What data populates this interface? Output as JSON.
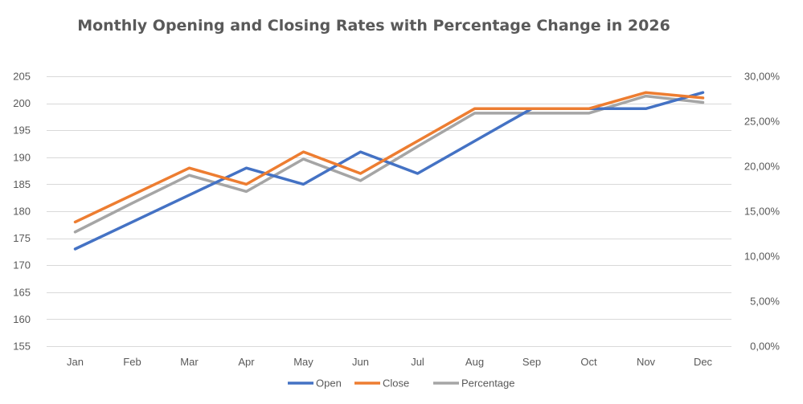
{
  "chart_data": {
    "type": "line",
    "title": "Monthly Opening and Closing Rates with Percentage Change in 2026",
    "categories": [
      "Jan",
      "Feb",
      "Mar",
      "Apr",
      "May",
      "Jun",
      "Jul",
      "Aug",
      "Sep",
      "Oct",
      "Nov",
      "Dec"
    ],
    "y_left": {
      "min": 155,
      "max": 205,
      "step": 5,
      "ticks": [
        "155",
        "160",
        "165",
        "170",
        "175",
        "180",
        "185",
        "190",
        "195",
        "200",
        "205"
      ]
    },
    "y_right": {
      "min": 0,
      "max": 30,
      "step": 5,
      "ticks": [
        "0,00%",
        "5,00%",
        "10,00%",
        "15,00%",
        "20,00%",
        "25,00%",
        "30,00%"
      ]
    },
    "grid": true,
    "legend_position": "bottom",
    "series": [
      {
        "name": "Open",
        "axis": "left",
        "color": "#4472C4",
        "values": [
          173,
          178,
          183,
          188,
          185,
          191,
          187,
          193,
          199,
          199,
          199,
          202
        ]
      },
      {
        "name": "Close",
        "axis": "left",
        "color": "#ED7D31",
        "values": [
          178,
          183,
          188,
          185,
          191,
          187,
          193,
          199,
          199,
          199,
          202,
          201
        ]
      },
      {
        "name": "Percentage",
        "axis": "right",
        "color": "#A5A5A5",
        "values": [
          12.7,
          15.9,
          19.0,
          17.2,
          20.8,
          18.4,
          22.2,
          25.9,
          25.9,
          25.9,
          27.8,
          27.1
        ]
      }
    ]
  }
}
